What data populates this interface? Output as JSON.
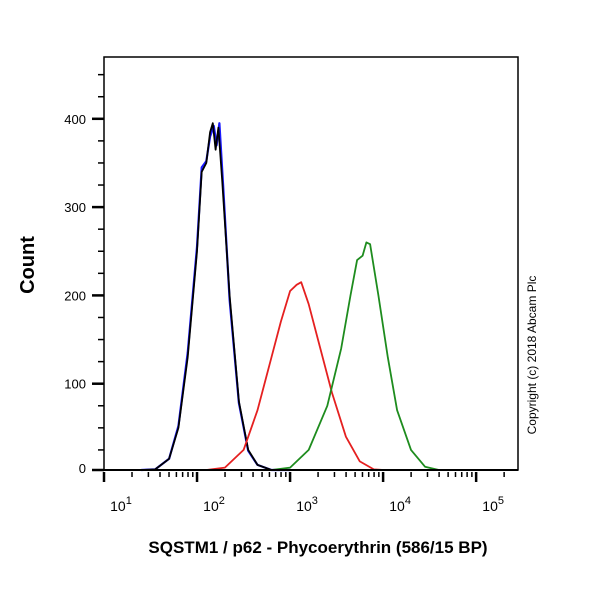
{
  "chart_data": {
    "type": "line",
    "title": "",
    "xlabel": "SQSTM1 / p62 - Phycoerythrin (586/15 BP)",
    "ylabel": "Count",
    "x_scale": "log10",
    "xlim_log10": [
      1,
      5.45
    ],
    "ylim": [
      0,
      470
    ],
    "x_ticks": [
      {
        "base": "10",
        "exp": "1",
        "log": 1
      },
      {
        "base": "10",
        "exp": "2",
        "log": 2
      },
      {
        "base": "10",
        "exp": "3",
        "log": 3
      },
      {
        "base": "10",
        "exp": "4",
        "log": 4
      },
      {
        "base": "10",
        "exp": "5",
        "log": 5
      }
    ],
    "y_ticks": [
      "0",
      "100",
      "200",
      "300",
      "400"
    ],
    "y_tick_values": [
      0,
      100,
      200,
      300,
      400
    ],
    "grid": false,
    "annotation": "Copyright (c) 2018 Abcam Plc",
    "series": [
      {
        "name": "blue",
        "color": "#1a1aff",
        "x_log10": [
          1.4,
          1.55,
          1.7,
          1.8,
          1.9,
          2.0,
          2.05,
          2.1,
          2.14,
          2.18,
          2.21,
          2.24,
          2.28,
          2.35,
          2.45,
          2.55,
          2.65,
          2.8,
          3.0
        ],
        "y": [
          0,
          3,
          15,
          52,
          135,
          255,
          345,
          352,
          380,
          392,
          370,
          395,
          325,
          195,
          78,
          24,
          8,
          2,
          0
        ]
      },
      {
        "name": "black",
        "color": "#000000",
        "x_log10": [
          1.4,
          1.55,
          1.7,
          1.8,
          1.9,
          2.0,
          2.05,
          2.1,
          2.14,
          2.17,
          2.2,
          2.23,
          2.27,
          2.35,
          2.45,
          2.55,
          2.65,
          2.8,
          3.0
        ],
        "y": [
          0,
          3,
          15,
          50,
          130,
          250,
          340,
          350,
          385,
          395,
          365,
          390,
          330,
          200,
          80,
          25,
          8,
          2,
          0
        ]
      },
      {
        "name": "red",
        "color": "#e52020",
        "x_log10": [
          2.1,
          2.3,
          2.5,
          2.65,
          2.8,
          2.9,
          3.0,
          3.07,
          3.12,
          3.2,
          3.3,
          3.45,
          3.6,
          3.75,
          3.9,
          4.0
        ],
        "y": [
          0,
          5,
          25,
          70,
          130,
          170,
          205,
          212,
          215,
          190,
          150,
          90,
          40,
          12,
          3,
          0
        ]
      },
      {
        "name": "green",
        "color": "#1e8c1e",
        "x_log10": [
          2.8,
          3.0,
          3.2,
          3.4,
          3.55,
          3.65,
          3.72,
          3.78,
          3.82,
          3.86,
          3.95,
          4.05,
          4.15,
          4.3,
          4.45,
          4.6
        ],
        "y": [
          0,
          5,
          25,
          75,
          140,
          200,
          240,
          245,
          260,
          258,
          200,
          130,
          70,
          25,
          6,
          0
        ]
      }
    ]
  }
}
